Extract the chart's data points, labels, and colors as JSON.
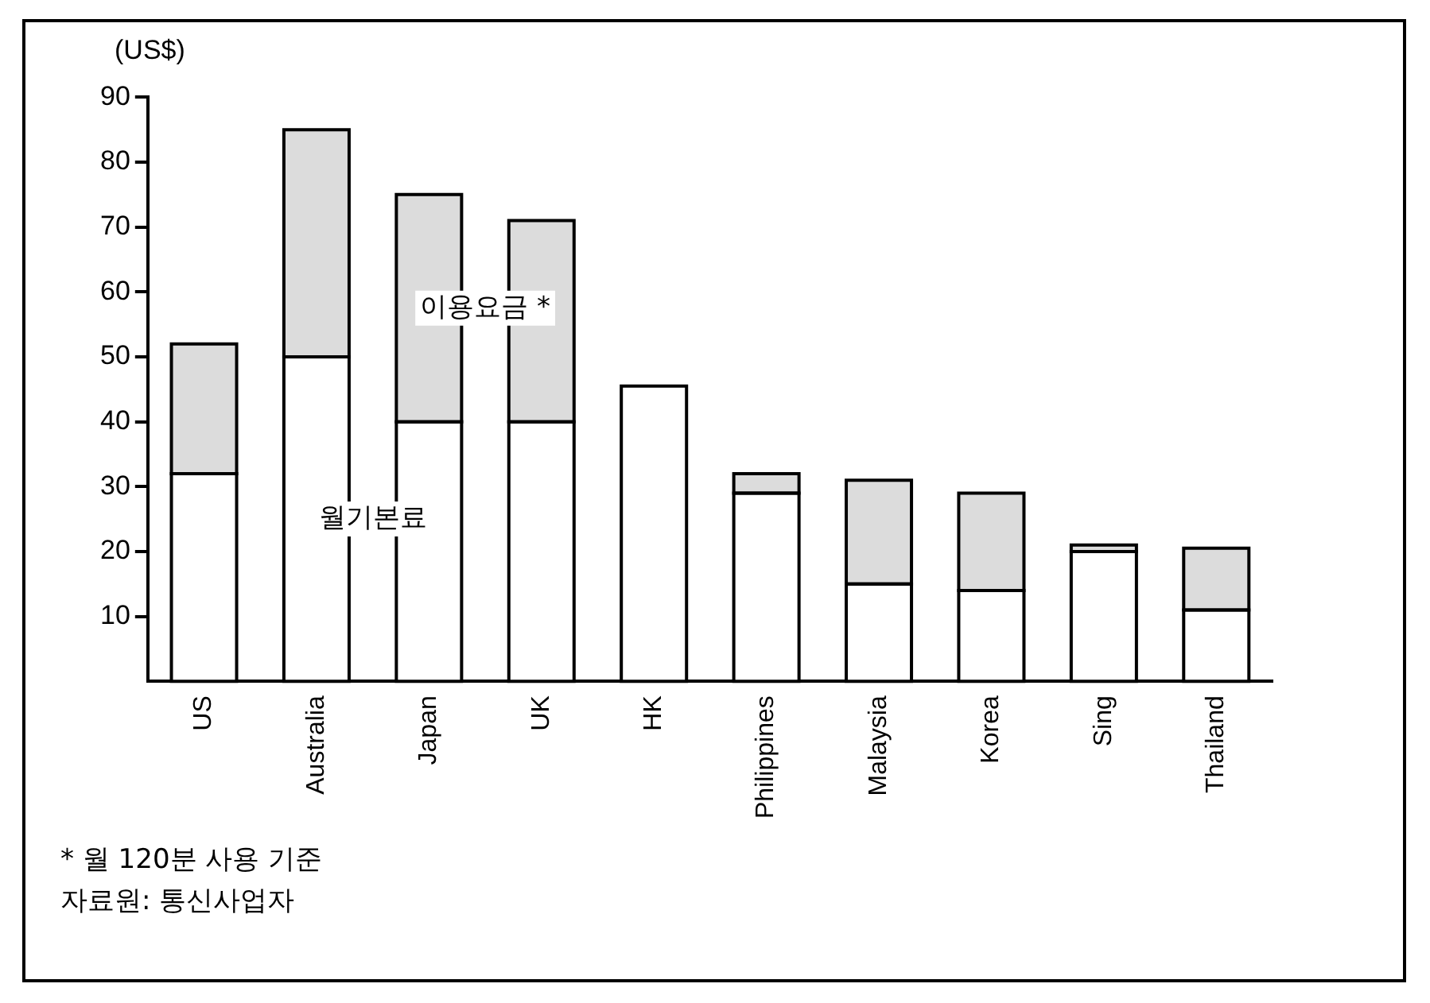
{
  "chart_data": {
    "type": "bar",
    "stacked": true,
    "ylabel": "(US$)",
    "categories": [
      "US",
      "Australia",
      "Japan",
      "UK",
      "HK",
      "Philippines",
      "Malaysia",
      "Korea",
      "Sing",
      "Thailand"
    ],
    "series": [
      {
        "name": "월기본료",
        "color": "#ffffff",
        "values": [
          32,
          50,
          40,
          40,
          45.5,
          29,
          15,
          14,
          20,
          11
        ]
      },
      {
        "name": "이용요금 *",
        "color": "#dcdcdc",
        "values": [
          20,
          35,
          35,
          31,
          0,
          3,
          16,
          15,
          1,
          9.5
        ]
      }
    ],
    "ylim": [
      0,
      90
    ],
    "yticks": [
      10,
      20,
      30,
      40,
      50,
      60,
      70,
      80,
      90
    ],
    "grid": false,
    "legend": false,
    "annotations": [
      "* 월 120분 사용 기준",
      "자료원: 통신사업자"
    ]
  }
}
